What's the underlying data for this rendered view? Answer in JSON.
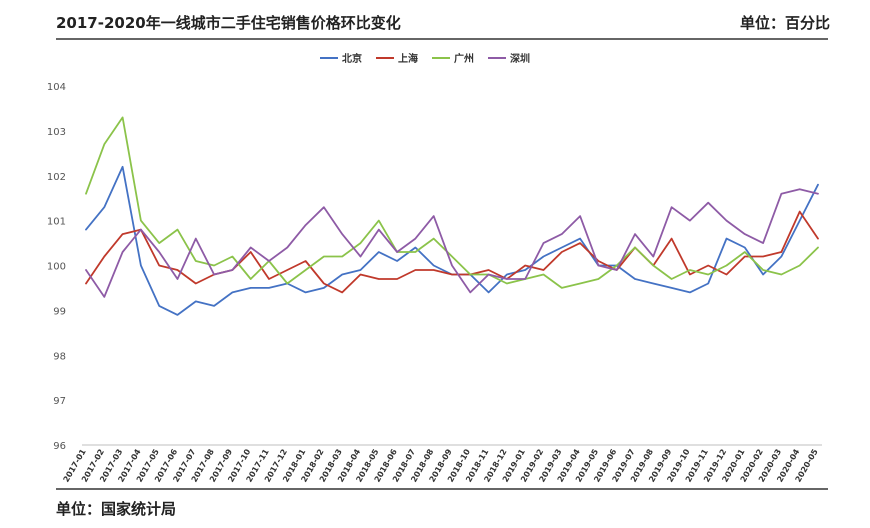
{
  "header": {
    "title": "2017-2020年一线城市二手住宅销售价格环比变化",
    "unit": "单位：百分比"
  },
  "footer": {
    "source": "单位：国家统计局"
  },
  "chart_data": {
    "type": "line",
    "x": [
      "2017-01",
      "2017-02",
      "2017-03",
      "2017-04",
      "2017-05",
      "2017-06",
      "2017-07",
      "2017-08",
      "2017-09",
      "2017-10",
      "2017-11",
      "2017-12",
      "2018-01",
      "2018-02",
      "2018-03",
      "2018-04",
      "2018-05",
      "2018-06",
      "2018-07",
      "2018-08",
      "2018-09",
      "2018-10",
      "2018-11",
      "2018-12",
      "2019-01",
      "2019-02",
      "2019-03",
      "2019-04",
      "2019-05",
      "2019-06",
      "2019-07",
      "2019-08",
      "2019-09",
      "2019-10",
      "2019-11",
      "2019-12",
      "2020-01",
      "2020-02",
      "2020-03",
      "2020-04",
      "2020-05"
    ],
    "ylim": [
      96,
      104
    ],
    "yticks": [
      96,
      97,
      98,
      99,
      100,
      101,
      102,
      103,
      104
    ],
    "legend_position": "top-center",
    "grid": false,
    "series": [
      {
        "name": "北京",
        "color": "#4472C4",
        "values": [
          100.8,
          101.3,
          102.2,
          100.0,
          99.1,
          98.9,
          99.2,
          99.1,
          99.4,
          99.5,
          99.5,
          99.6,
          99.4,
          99.5,
          99.8,
          99.9,
          100.3,
          100.1,
          100.4,
          100.0,
          99.8,
          99.8,
          99.4,
          99.8,
          99.9,
          100.2,
          100.4,
          100.6,
          100.0,
          100.0,
          99.7,
          99.6,
          99.5,
          99.4,
          99.6,
          100.6,
          100.4,
          99.8,
          100.2,
          101.0,
          101.8
        ]
      },
      {
        "name": "上海",
        "color": "#C0392B",
        "values": [
          99.6,
          100.2,
          100.7,
          100.8,
          100.0,
          99.9,
          99.6,
          99.8,
          99.9,
          100.3,
          99.7,
          99.9,
          100.1,
          99.6,
          99.4,
          99.8,
          99.7,
          99.7,
          99.9,
          99.9,
          99.8,
          99.8,
          99.9,
          99.7,
          100.0,
          99.9,
          100.3,
          100.5,
          100.1,
          99.9,
          100.4,
          100.0,
          100.6,
          99.8,
          100.0,
          99.8,
          100.2,
          100.2,
          100.3,
          101.2,
          100.6
        ]
      },
      {
        "name": "广州",
        "color": "#8BC34A",
        "values": [
          101.6,
          102.7,
          103.3,
          101.0,
          100.5,
          100.8,
          100.1,
          100.0,
          100.2,
          99.7,
          100.1,
          99.6,
          99.9,
          100.2,
          100.2,
          100.5,
          101.0,
          100.3,
          100.3,
          100.6,
          100.2,
          99.8,
          99.8,
          99.6,
          99.7,
          99.8,
          99.5,
          99.6,
          99.7,
          100.0,
          100.4,
          100.0,
          99.7,
          99.9,
          99.8,
          100.0,
          100.3,
          99.9,
          99.8,
          100.0,
          100.4
        ]
      },
      {
        "name": "深圳",
        "color": "#8E5BA6",
        "values": [
          99.9,
          99.3,
          100.3,
          100.8,
          100.3,
          99.7,
          100.6,
          99.8,
          99.9,
          100.4,
          100.1,
          100.4,
          100.9,
          101.3,
          100.7,
          100.2,
          100.8,
          100.3,
          100.6,
          101.1,
          100.0,
          99.4,
          99.8,
          99.7,
          99.7,
          100.5,
          100.7,
          101.1,
          100.0,
          99.9,
          100.7,
          100.2,
          101.3,
          101.0,
          101.4,
          101.0,
          100.7,
          100.5,
          101.6,
          101.7,
          101.6
        ]
      }
    ]
  }
}
